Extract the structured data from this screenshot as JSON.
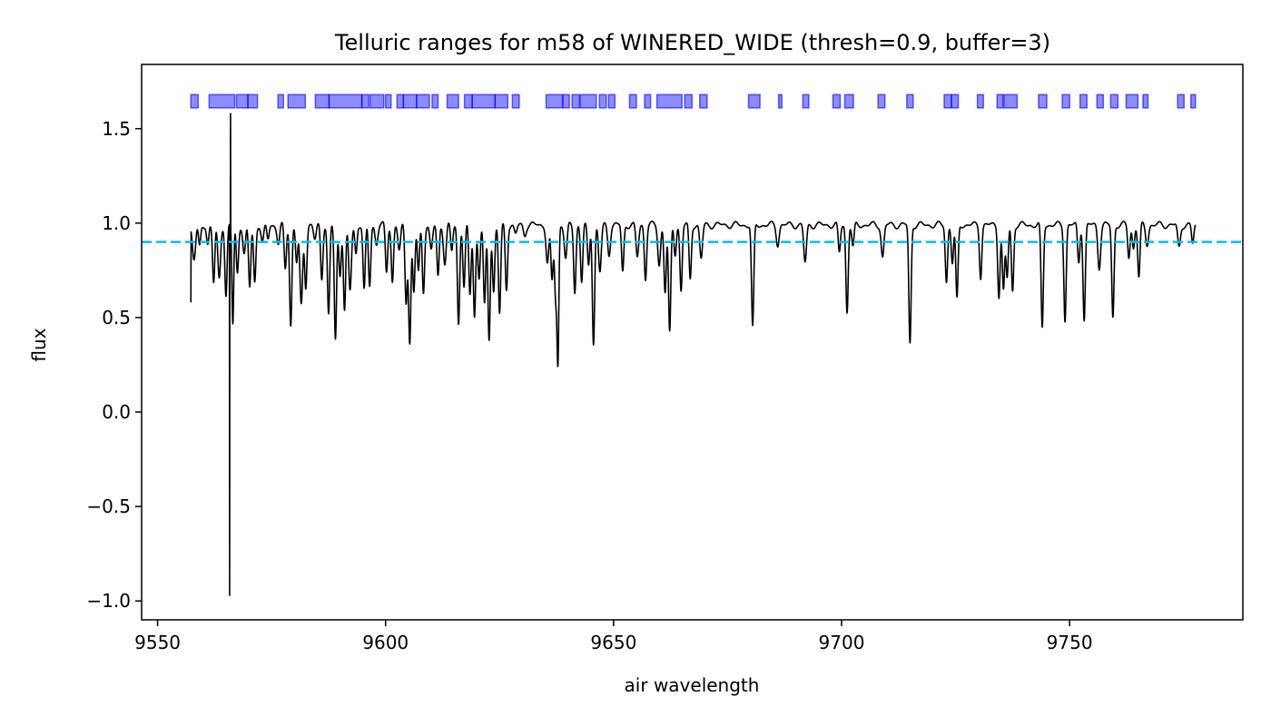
{
  "chart_data": {
    "type": "line",
    "title": "Telluric ranges for m58 of WINERED_WIDE (thresh=0.9, buffer=3)",
    "xlabel": "air wavelength",
    "ylabel": "flux",
    "xlim": [
      9546.5,
      9788.0
    ],
    "ylim": [
      -1.1,
      1.84
    ],
    "xticks": [
      9550,
      9600,
      9650,
      9700,
      9750
    ],
    "yticks": [
      -1.0,
      -0.5,
      0.0,
      0.5,
      1.0,
      1.5
    ],
    "xtick_labels": [
      "9550",
      "9600",
      "9650",
      "9700",
      "9750"
    ],
    "ytick_labels": [
      "−1.0",
      "−0.5",
      "0.0",
      "0.5",
      "1.0",
      "1.5"
    ],
    "grid": false,
    "threshold": {
      "value": 0.9,
      "color": "#00bfff",
      "style": "dashed"
    },
    "spectrum_color": "#000000",
    "continuum": 0.99,
    "x_start": 9557.3,
    "x_end": 9777.6,
    "absorption_lines": [
      [
        9558.0,
        0.18,
        0.35
      ],
      [
        9559.2,
        0.12,
        0.25
      ],
      [
        9561.0,
        0.1,
        0.25
      ],
      [
        9562.3,
        0.31,
        0.25
      ],
      [
        9563.5,
        0.28,
        0.3
      ],
      [
        9565.0,
        0.38,
        0.25
      ],
      [
        9566.5,
        0.53,
        0.2
      ],
      [
        9567.5,
        0.25,
        0.25
      ],
      [
        9569.0,
        0.16,
        0.3
      ],
      [
        9570.2,
        0.33,
        0.25
      ],
      [
        9571.3,
        0.3,
        0.25
      ],
      [
        9573.0,
        0.1,
        0.3
      ],
      [
        9574.2,
        0.07,
        0.25
      ],
      [
        9576.5,
        0.1,
        0.3
      ],
      [
        9578.0,
        0.23,
        0.25
      ],
      [
        9579.2,
        0.53,
        0.25
      ],
      [
        9580.5,
        0.2,
        0.25
      ],
      [
        9581.5,
        0.43,
        0.3
      ],
      [
        9582.5,
        0.32,
        0.25
      ],
      [
        9584.5,
        0.08,
        0.3
      ],
      [
        9586.0,
        0.28,
        0.25
      ],
      [
        9587.5,
        0.48,
        0.25
      ],
      [
        9589.0,
        0.61,
        0.25
      ],
      [
        9590.0,
        0.26,
        0.25
      ],
      [
        9591.0,
        0.45,
        0.25
      ],
      [
        9592.2,
        0.35,
        0.3
      ],
      [
        9593.5,
        0.15,
        0.25
      ],
      [
        9595.3,
        0.35,
        0.25
      ],
      [
        9596.5,
        0.32,
        0.25
      ],
      [
        9598.0,
        0.1,
        0.3
      ],
      [
        9600.2,
        0.25,
        0.25
      ],
      [
        9601.5,
        0.3,
        0.25
      ],
      [
        9603.0,
        0.14,
        0.3
      ],
      [
        9604.5,
        0.4,
        0.25
      ],
      [
        9605.3,
        0.62,
        0.25
      ],
      [
        9606.2,
        0.36,
        0.25
      ],
      [
        9607.2,
        0.25,
        0.25
      ],
      [
        9608.3,
        0.35,
        0.25
      ],
      [
        9610.0,
        0.14,
        0.3
      ],
      [
        9611.5,
        0.27,
        0.25
      ],
      [
        9613.0,
        0.2,
        0.3
      ],
      [
        9614.5,
        0.14,
        0.25
      ],
      [
        9616.0,
        0.52,
        0.25
      ],
      [
        9617.2,
        0.33,
        0.25
      ],
      [
        9618.5,
        0.37,
        0.25
      ],
      [
        9619.5,
        0.48,
        0.25
      ],
      [
        9620.5,
        0.28,
        0.25
      ],
      [
        9621.7,
        0.43,
        0.25
      ],
      [
        9622.7,
        0.6,
        0.25
      ],
      [
        9623.7,
        0.35,
        0.25
      ],
      [
        9625.0,
        0.47,
        0.25
      ],
      [
        9626.5,
        0.34,
        0.25
      ],
      [
        9628.5,
        0.05,
        0.3
      ],
      [
        9630.5,
        0.05,
        0.3
      ],
      [
        9635.5,
        0.2,
        0.3
      ],
      [
        9636.5,
        0.3,
        0.25
      ],
      [
        9637.3,
        0.38,
        0.25
      ],
      [
        9637.8,
        0.69,
        0.2
      ],
      [
        9639.5,
        0.18,
        0.3
      ],
      [
        9641.5,
        0.35,
        0.25
      ],
      [
        9643.0,
        0.3,
        0.25
      ],
      [
        9644.5,
        0.22,
        0.25
      ],
      [
        9645.6,
        0.62,
        0.25
      ],
      [
        9647.0,
        0.25,
        0.3
      ],
      [
        9649.0,
        0.15,
        0.3
      ],
      [
        9652.0,
        0.25,
        0.25
      ],
      [
        9655.2,
        0.17,
        0.3
      ],
      [
        9657.0,
        0.28,
        0.25
      ],
      [
        9660.0,
        0.21,
        0.3
      ],
      [
        9661.3,
        0.35,
        0.25
      ],
      [
        9662.3,
        0.58,
        0.25
      ],
      [
        9663.5,
        0.15,
        0.25
      ],
      [
        9664.8,
        0.35,
        0.25
      ],
      [
        9666.8,
        0.29,
        0.25
      ],
      [
        9669.2,
        0.18,
        0.3
      ],
      [
        9680.5,
        0.55,
        0.25
      ],
      [
        9686.0,
        0.1,
        0.3
      ],
      [
        9692.0,
        0.2,
        0.3
      ],
      [
        9699.5,
        0.15,
        0.25
      ],
      [
        9701.2,
        0.46,
        0.25
      ],
      [
        9702.5,
        0.12,
        0.25
      ],
      [
        9709.0,
        0.17,
        0.3
      ],
      [
        9715.0,
        0.63,
        0.25
      ],
      [
        9723.0,
        0.3,
        0.25
      ],
      [
        9724.3,
        0.2,
        0.25
      ],
      [
        9725.3,
        0.4,
        0.25
      ],
      [
        9730.5,
        0.27,
        0.25
      ],
      [
        9734.5,
        0.37,
        0.25
      ],
      [
        9735.5,
        0.35,
        0.25
      ],
      [
        9736.3,
        0.28,
        0.25
      ],
      [
        9737.5,
        0.35,
        0.25
      ],
      [
        9744.0,
        0.55,
        0.25
      ],
      [
        9749.0,
        0.5,
        0.25
      ],
      [
        9752.0,
        0.2,
        0.25
      ],
      [
        9753.2,
        0.5,
        0.25
      ],
      [
        9756.5,
        0.22,
        0.3
      ],
      [
        9759.5,
        0.49,
        0.25
      ],
      [
        9763.0,
        0.17,
        0.25
      ],
      [
        9764.0,
        0.12,
        0.25
      ],
      [
        9765.2,
        0.28,
        0.25
      ],
      [
        9767.0,
        0.1,
        0.3
      ],
      [
        9774.0,
        0.12,
        0.3
      ],
      [
        9777.0,
        0.1,
        0.25
      ]
    ],
    "spikes": [
      {
        "x": 9565.8,
        "y": -0.97
      },
      {
        "x": 9566.0,
        "y": 1.58
      }
    ],
    "telluric_ranges": {
      "y_center": 1.645,
      "height": 0.07,
      "color": "#0000ff",
      "alpha": 0.45,
      "ranges": [
        [
          9557.3,
          9558.9
        ],
        [
          9561.3,
          9566.9
        ],
        [
          9567.3,
          9569.8
        ],
        [
          9569.8,
          9571.9
        ],
        [
          9576.4,
          9577.6
        ],
        [
          9578.6,
          9582.4
        ],
        [
          9584.6,
          9587.6
        ],
        [
          9587.6,
          9594.8
        ],
        [
          9594.8,
          9596.3
        ],
        [
          9596.6,
          9599.6
        ],
        [
          9600.0,
          9601.2
        ],
        [
          9602.5,
          9603.9
        ],
        [
          9603.9,
          9606.8
        ],
        [
          9606.8,
          9609.6
        ],
        [
          9610.2,
          9611.5
        ],
        [
          9613.5,
          9616.0
        ],
        [
          9617.3,
          9619.0
        ],
        [
          9619.0,
          9624.0
        ],
        [
          9624.0,
          9626.8
        ],
        [
          9627.8,
          9629.3
        ],
        [
          9635.2,
          9638.8
        ],
        [
          9638.9,
          9640.3
        ],
        [
          9640.9,
          9642.5
        ],
        [
          9642.7,
          9646.2
        ],
        [
          9646.9,
          9648.4
        ],
        [
          9648.9,
          9650.3
        ],
        [
          9653.5,
          9655.0
        ],
        [
          9656.8,
          9658.1
        ],
        [
          9659.5,
          9665.0
        ],
        [
          9665.6,
          9667.2
        ],
        [
          9668.9,
          9670.5
        ],
        [
          9679.6,
          9682.1
        ],
        [
          9686.2,
          9686.9
        ],
        [
          9691.5,
          9692.8
        ],
        [
          9698.1,
          9699.7
        ],
        [
          9700.7,
          9702.6
        ],
        [
          9708.0,
          9709.5
        ],
        [
          9714.3,
          9715.7
        ],
        [
          9722.5,
          9724.1
        ],
        [
          9724.1,
          9725.6
        ],
        [
          9729.8,
          9731.1
        ],
        [
          9734.1,
          9735.4
        ],
        [
          9735.6,
          9738.5
        ],
        [
          9743.2,
          9745.0
        ],
        [
          9748.4,
          9750.0
        ],
        [
          9752.3,
          9753.8
        ],
        [
          9756.0,
          9757.4
        ],
        [
          9759.0,
          9760.6
        ],
        [
          9762.4,
          9765.0
        ],
        [
          9766.1,
          9767.2
        ],
        [
          9773.7,
          9775.1
        ],
        [
          9776.6,
          9777.6
        ]
      ]
    }
  }
}
